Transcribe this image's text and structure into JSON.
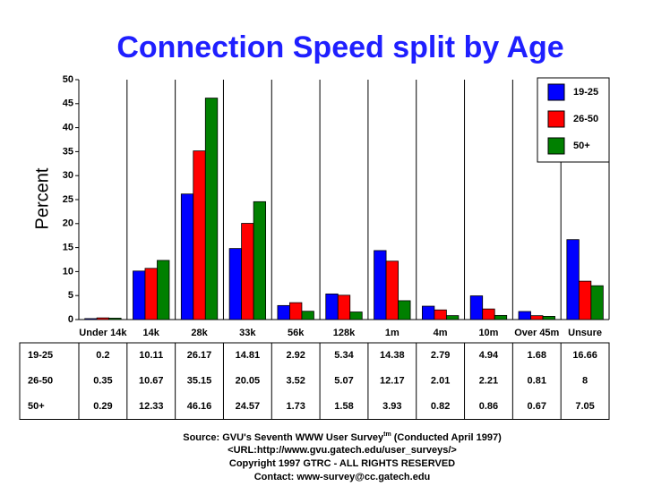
{
  "chart_data": {
    "type": "bar",
    "title": "Connection Speed split by Age",
    "y_label": "Percent",
    "categories": [
      "Under 14k",
      "14k",
      "28k",
      "33k",
      "56k",
      "128k",
      "1m",
      "4m",
      "10m",
      "Over 45m",
      "Unsure"
    ],
    "series": [
      {
        "name": "19-25",
        "color": "#0000ff",
        "values": [
          0.2,
          10.11,
          26.17,
          14.81,
          2.92,
          5.34,
          14.38,
          2.79,
          4.94,
          1.68,
          16.66
        ]
      },
      {
        "name": "26-50",
        "color": "#ff0000",
        "values": [
          0.35,
          10.67,
          35.15,
          20.05,
          3.52,
          5.07,
          12.17,
          2.01,
          2.21,
          0.81,
          8
        ]
      },
      {
        "name": "50+",
        "color": "#008000",
        "values": [
          0.29,
          12.33,
          46.16,
          24.57,
          1.73,
          1.58,
          3.93,
          0.82,
          0.86,
          0.67,
          7.05
        ]
      }
    ],
    "ylim": [
      0,
      50
    ],
    "yticks": [
      0,
      5,
      10,
      15,
      20,
      25,
      30,
      35,
      40,
      45,
      50
    ],
    "legend": "top-right",
    "source": "Source: GVU's Seventh WWW User Survey",
    "source_mark": "tm",
    "source_note": " (Conducted April 1997)",
    "url": "<URL:http://www.gvu.gatech.edu/user_surveys/>",
    "copyright": "Copyright 1997 GTRC - ALL RIGHTS RESERVED",
    "contact": "Contact: www-survey@cc.gatech.edu"
  }
}
